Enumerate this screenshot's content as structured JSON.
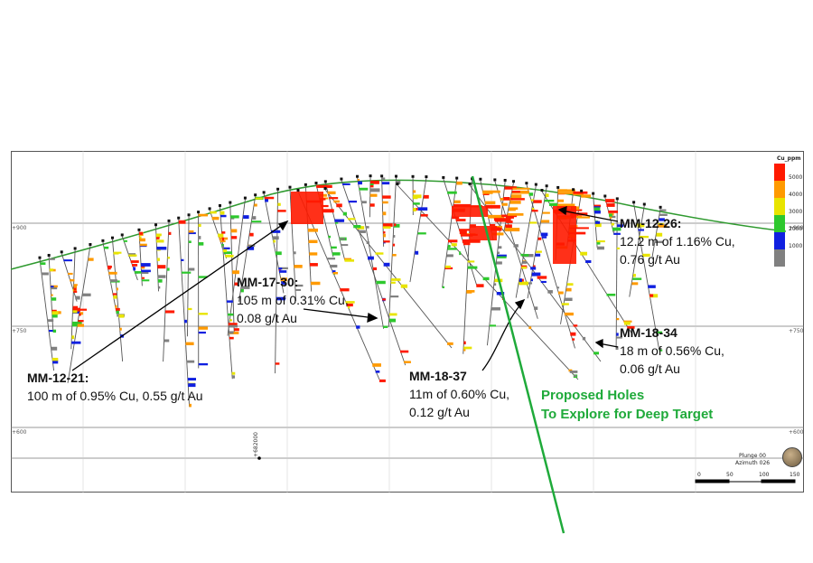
{
  "section": {
    "elevations": {
      "e900": "+900",
      "e750": "+750",
      "e600": "+600"
    },
    "northing_label": "+682000",
    "plunge": "Plunge 00",
    "azimuth": "Azimuth 026",
    "scale_ticks": [
      "0",
      "50",
      "100",
      "150"
    ]
  },
  "legend": {
    "title": "Cu_ppm",
    "items": [
      {
        "label": "5000",
        "color": "#ff1a00"
      },
      {
        "label": "4000",
        "color": "#ff9a00"
      },
      {
        "label": "3000",
        "color": "#e8e400"
      },
      {
        "label": "2000",
        "color": "#2dc82d"
      },
      {
        "label": "1000",
        "color": "#1020e0"
      },
      {
        "label": "",
        "color": "#808080"
      }
    ]
  },
  "annotations": {
    "mm1221": {
      "id": "MM-12-21:",
      "line1": "100 m of 0.95% Cu,  0.55 g/t Au"
    },
    "mm1730": {
      "id": "MM-17-30:",
      "line1": "105 m of 0.31% Cu,",
      "line2": " 0.08 g/t Au"
    },
    "mm1226": {
      "id": "MM-12-26:",
      "line1": "12.2 m of 1.16% Cu,",
      "line2": "0.76 g/t Au"
    },
    "mm1834": {
      "id": "MM-18-34",
      "line1": "18 m of 0.56% Cu,",
      "line2": "0.06 g/t Au"
    },
    "mm1837": {
      "id": "MM-18-37",
      "line1": "11m of 0.60% Cu,",
      "line2": "0.12 g/t Au"
    }
  },
  "proposed": {
    "line1": "Proposed Holes",
    "line2": "To Explore for  Deep Target"
  },
  "colors": {
    "topography": "#2f9a2f",
    "proposed_hole": "#1faa3a",
    "drill_trace": "#555555"
  }
}
